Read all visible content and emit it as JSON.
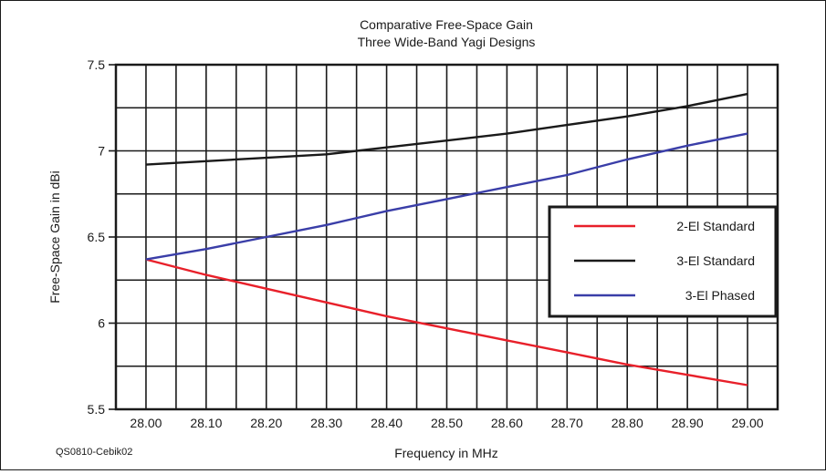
{
  "chart_data": {
    "type": "line",
    "title": "Comparative Free-Space Gain",
    "subtitle": "Three Wide-Band Yagi Designs",
    "xlabel": "Frequency in MHz",
    "ylabel": "Free-Space Gain in dBi",
    "source_note": "QS0810-Cebik02",
    "xlim": [
      27.95,
      29.05
    ],
    "ylim": [
      5.5,
      7.5
    ],
    "x_ticks": [
      "28.00",
      "28.10",
      "28.20",
      "28.30",
      "28.40",
      "28.50",
      "28.60",
      "28.70",
      "28.80",
      "28.90",
      "29.00"
    ],
    "y_ticks": [
      "5.5",
      "6",
      "6.5",
      "7",
      "7.5"
    ],
    "grid": true,
    "legend_position": "right",
    "x": [
      28.0,
      28.1,
      28.2,
      28.3,
      28.4,
      28.5,
      28.6,
      28.7,
      28.8,
      28.9,
      29.0
    ],
    "series": [
      {
        "name": "2-El Standard",
        "color": "#e8202a",
        "values": [
          6.37,
          6.28,
          6.2,
          6.12,
          6.04,
          5.97,
          5.9,
          5.83,
          5.76,
          5.7,
          5.64
        ]
      },
      {
        "name": "3-El Standard",
        "color": "#1a1a1a",
        "values": [
          6.92,
          6.94,
          6.96,
          6.98,
          7.02,
          7.06,
          7.1,
          7.15,
          7.2,
          7.26,
          7.33
        ]
      },
      {
        "name": "3-El Phased",
        "color": "#3a3ea8",
        "values": [
          6.37,
          6.43,
          6.5,
          6.57,
          6.65,
          6.72,
          6.79,
          6.86,
          6.95,
          7.03,
          7.1
        ]
      }
    ]
  }
}
